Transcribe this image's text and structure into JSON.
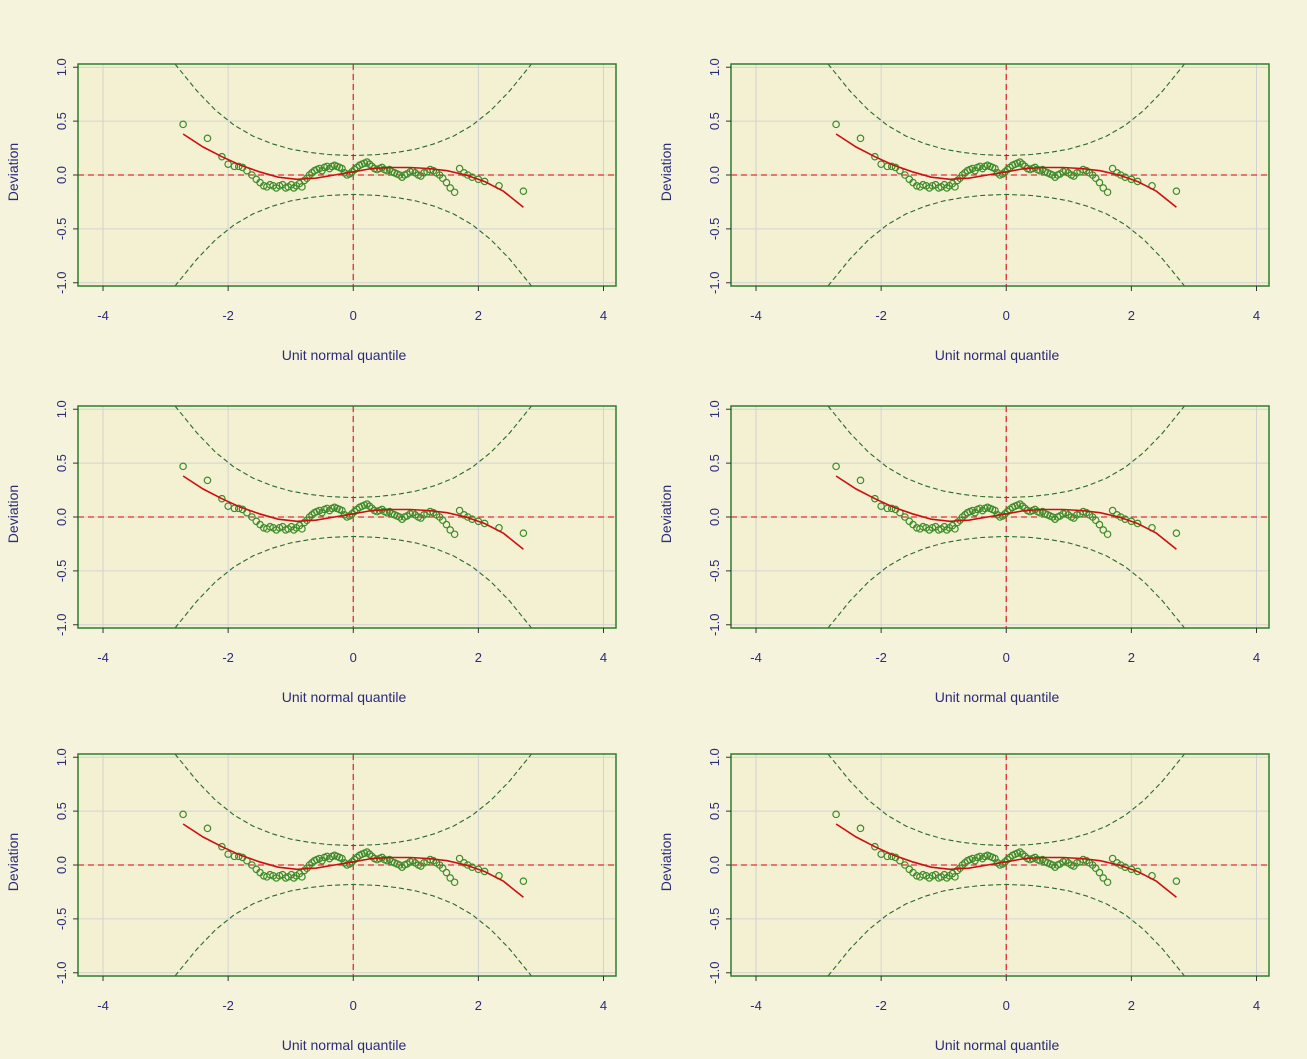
{
  "style": {
    "background": "#f5f3dc",
    "plot_background": "#f3f1d2",
    "frame_color": "#2e7d2e",
    "grid_color": "#d2d2d2",
    "reference_line_color": "#e03030",
    "fit_curve_color": "#cc1010",
    "point_color": "#3f8c2a",
    "confidence_band_color": "#2a6a2a",
    "text_color": "#2b2b7a"
  },
  "chart_data": [
    {
      "type": "scatter",
      "xlabel": "Unit normal quantile",
      "ylabel": "Deviation",
      "xlim": [
        -4.4,
        4.2
      ],
      "ylim": [
        -1.03,
        1.03
      ],
      "xticks": [
        -4,
        -2,
        0,
        2,
        4
      ],
      "xtick_labels": [
        "-4",
        "-2",
        "0",
        "2",
        "4"
      ],
      "yticks": [
        -1.0,
        -0.5,
        0.0,
        0.5,
        1.0
      ],
      "ytick_labels": [
        "-1.0",
        "-0.5",
        "0.0",
        "0.5",
        "1.0"
      ],
      "grid": true,
      "reference_lines": [
        {
          "axis": "x",
          "value": 0
        },
        {
          "axis": "y",
          "value": 0
        }
      ],
      "series": [
        {
          "kind": "points",
          "x": [
            -2.72,
            -2.33,
            -2.1,
            -2.0,
            -1.9,
            -1.83,
            -1.77,
            -1.7,
            -1.62,
            -1.55,
            -1.49,
            -1.43,
            -1.38,
            -1.33,
            -1.28,
            -1.23,
            -1.18,
            -1.13,
            -1.08,
            -1.04,
            -0.99,
            -0.95,
            -0.91,
            -0.86,
            -0.82,
            -0.78,
            -0.74,
            -0.7,
            -0.66,
            -0.62,
            -0.58,
            -0.54,
            -0.5,
            -0.46,
            -0.42,
            -0.38,
            -0.34,
            -0.3,
            -0.26,
            -0.22,
            -0.18,
            -0.14,
            -0.1,
            -0.06,
            -0.02,
            0.02,
            0.06,
            0.1,
            0.14,
            0.18,
            0.22,
            0.26,
            0.3,
            0.34,
            0.38,
            0.42,
            0.46,
            0.5,
            0.54,
            0.58,
            0.62,
            0.66,
            0.7,
            0.74,
            0.78,
            0.82,
            0.86,
            0.91,
            0.95,
            0.99,
            1.04,
            1.08,
            1.13,
            1.18,
            1.23,
            1.28,
            1.33,
            1.38,
            1.43,
            1.49,
            1.55,
            1.62,
            1.7,
            1.77,
            1.83,
            1.9,
            2.0,
            2.1,
            2.33,
            2.72
          ],
          "y": [
            0.47,
            0.34,
            0.17,
            0.1,
            0.08,
            0.08,
            0.07,
            0.04,
            0.0,
            -0.04,
            -0.07,
            -0.1,
            -0.11,
            -0.09,
            -0.1,
            -0.12,
            -0.1,
            -0.09,
            -0.12,
            -0.11,
            -0.09,
            -0.12,
            -0.1,
            -0.08,
            -0.11,
            -0.05,
            -0.03,
            0.0,
            0.02,
            0.04,
            0.05,
            0.06,
            0.04,
            0.07,
            0.08,
            0.06,
            0.08,
            0.09,
            0.08,
            0.07,
            0.06,
            0.02,
            0.0,
            0.01,
            0.03,
            0.05,
            0.07,
            0.09,
            0.1,
            0.11,
            0.12,
            0.1,
            0.08,
            0.06,
            0.05,
            0.06,
            0.07,
            0.05,
            0.04,
            0.05,
            0.03,
            0.02,
            0.01,
            0.0,
            -0.02,
            0.0,
            0.01,
            0.03,
            0.04,
            0.02,
            0.0,
            -0.01,
            0.02,
            0.03,
            0.05,
            0.04,
            0.02,
            0.0,
            -0.03,
            -0.07,
            -0.12,
            -0.16,
            0.06,
            0.02,
            0.0,
            -0.02,
            -0.04,
            -0.06,
            -0.1,
            -0.15
          ]
        },
        {
          "kind": "fit_curve",
          "x": [
            -2.72,
            -2.4,
            -2.1,
            -1.8,
            -1.5,
            -1.2,
            -0.9,
            -0.6,
            -0.3,
            0.0,
            0.3,
            0.6,
            0.9,
            1.2,
            1.5,
            1.8,
            2.1,
            2.4,
            2.72
          ],
          "y": [
            0.38,
            0.26,
            0.17,
            0.09,
            0.03,
            -0.02,
            -0.04,
            -0.03,
            0.0,
            0.03,
            0.06,
            0.07,
            0.07,
            0.06,
            0.04,
            0.0,
            -0.06,
            -0.15,
            -0.3
          ]
        },
        {
          "kind": "confidence_band_upper",
          "x": [
            -2.85,
            -2.5,
            -2.2,
            -1.9,
            -1.6,
            -1.3,
            -1.0,
            -0.7,
            -0.4,
            0.0,
            0.4,
            0.7,
            1.0,
            1.3,
            1.6,
            1.9,
            2.2,
            2.5,
            2.85
          ],
          "y": [
            1.03,
            0.78,
            0.6,
            0.46,
            0.36,
            0.29,
            0.24,
            0.21,
            0.19,
            0.18,
            0.19,
            0.21,
            0.24,
            0.29,
            0.36,
            0.46,
            0.6,
            0.78,
            1.03
          ]
        },
        {
          "kind": "confidence_band_lower",
          "x": [
            -2.85,
            -2.5,
            -2.2,
            -1.9,
            -1.6,
            -1.3,
            -1.0,
            -0.7,
            -0.4,
            0.0,
            0.4,
            0.7,
            1.0,
            1.3,
            1.6,
            1.9,
            2.2,
            2.5,
            2.85
          ],
          "y": [
            -1.03,
            -0.78,
            -0.6,
            -0.46,
            -0.36,
            -0.29,
            -0.24,
            -0.21,
            -0.19,
            -0.18,
            -0.19,
            -0.21,
            -0.24,
            -0.29,
            -0.36,
            -0.46,
            -0.6,
            -0.78,
            -1.03
          ]
        }
      ]
    }
  ]
}
